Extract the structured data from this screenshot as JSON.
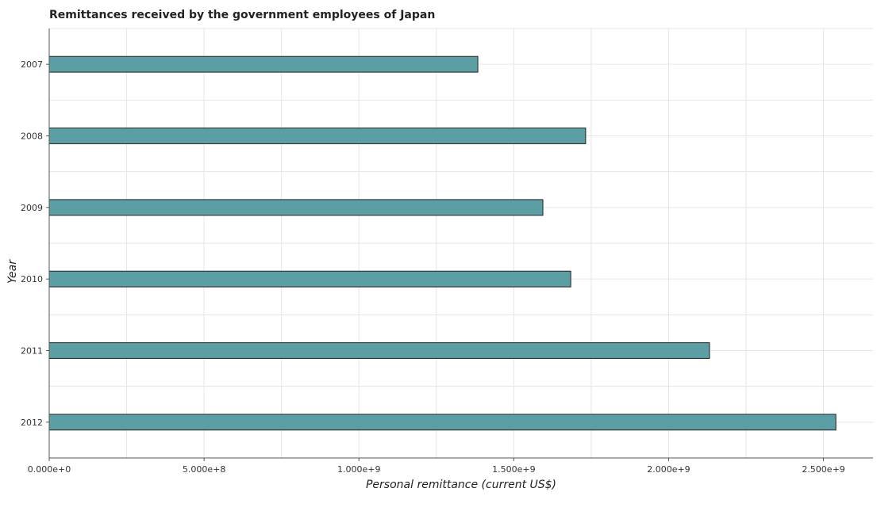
{
  "chart_data": {
    "type": "bar",
    "orientation": "horizontal",
    "title": "Remittances received by the government employees of Japan",
    "xlabel": "Personal remittance (current US$)",
    "ylabel": "Year",
    "categories": [
      "2007",
      "2008",
      "2009",
      "2010",
      "2011",
      "2012"
    ],
    "values": [
      1384000000,
      1732000000,
      1594000000,
      1684000000,
      2132000000,
      2540000000
    ],
    "xlim": [
      0,
      2660000000
    ],
    "xticks": [
      0,
      500000000,
      1000000000,
      1500000000,
      2000000000,
      2500000000
    ],
    "xtick_labels": [
      "0.000e+0",
      "5.000e+8",
      "1.000e+9",
      "1.500e+9",
      "2.000e+9",
      "2.500e+9"
    ],
    "grid": true,
    "bar_color": "#5b9ea3"
  }
}
